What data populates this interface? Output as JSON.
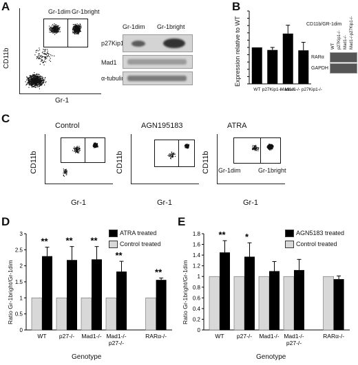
{
  "panels": {
    "A": "A",
    "B": "B",
    "C": "C",
    "D": "D",
    "E": "E"
  },
  "panelA": {
    "xlabel": "Gr-1",
    "ylabel": "CD11b",
    "gate_dim": "Gr-1dim",
    "gate_bright": "Gr-1bright",
    "blot_col1": "Gr-1dim",
    "blot_col2": "Gr-1bright",
    "blot_rows": [
      "p27Kip1",
      "Mad1",
      "α-tubulin"
    ]
  },
  "panelB": {
    "ylabel": "Expression relative to WT",
    "inset_title": "CD11b/GR-1dim",
    "inset_rows": [
      "RARα",
      "GAPDH"
    ],
    "inset_cols": [
      "WT",
      "p27Kip1-/-",
      "Mad1-/-",
      "Mad1-/-p27Kip1-/-"
    ]
  },
  "panelC": {
    "titles": [
      "Control",
      "AGN195183",
      "ATRA"
    ],
    "xlabel": "Gr-1",
    "ylabel": "CD11b",
    "gate_dim": "Gr-1dim",
    "gate_bright": "Gr-1bright"
  },
  "panelD": {
    "ylabel": "Ratio Gr-1bright/Gr-1dim",
    "xlabel": "Genotype",
    "legend": [
      "ATRA treated",
      "Control treated"
    ]
  },
  "panelE": {
    "ylabel": "Ratio Gr-1bright/Gr-1dim",
    "xlabel": "Genotype",
    "legend": [
      "AGN5183 treated",
      "Control treated"
    ]
  },
  "colors": {
    "treated": "#000000",
    "control": "#d8d8d8",
    "bar_B": "#000000"
  },
  "chart_data": [
    {
      "type": "bar",
      "panel": "B",
      "categories": [
        "WT",
        "p27Kip1-/-",
        "Mad1-/-",
        "Mad1-/- p27Kip1-/-"
      ],
      "values": [
        1.0,
        0.93,
        1.38,
        0.92
      ],
      "errors": [
        0.0,
        0.07,
        0.23,
        0.22
      ],
      "ylabel": "Expression relative to WT",
      "ylim": [
        0,
        2
      ],
      "yticks": [
        "0",
        "0.2",
        "0.4",
        "0.6",
        "0.8",
        "1",
        "1.2",
        "1.4",
        "1.6",
        "1.8",
        "2"
      ]
    },
    {
      "type": "bar",
      "panel": "D",
      "categories": [
        "WT",
        "p27-/-",
        "Mad1-/-",
        "Mad1-/- p27-/-",
        "RARα-/-"
      ],
      "series": [
        {
          "name": "Control treated",
          "values": [
            1,
            1,
            1,
            1,
            1
          ],
          "errors": [
            0,
            0,
            0,
            0,
            0
          ]
        },
        {
          "name": "ATRA treated",
          "values": [
            2.3,
            2.18,
            2.2,
            1.82,
            1.56
          ],
          "errors": [
            0.28,
            0.42,
            0.4,
            0.32,
            0.06
          ]
        }
      ],
      "annotations": [
        "**",
        "**",
        "**",
        "**",
        "**"
      ],
      "ylabel": "Ratio Gr-1bright/Gr-1dim",
      "xlabel": "Genotype",
      "ylim": [
        0,
        3
      ],
      "yticks": [
        "0",
        "0.5",
        "1",
        "1.5",
        "2",
        "2.5",
        "3"
      ]
    },
    {
      "type": "bar",
      "panel": "E",
      "categories": [
        "WT",
        "p27-/-",
        "Mad1-/-",
        "Mad1-/- p27-/-",
        "RARα-/-"
      ],
      "series": [
        {
          "name": "Control treated",
          "values": [
            1,
            1,
            1,
            1,
            1
          ],
          "errors": [
            0,
            0,
            0,
            0,
            0
          ]
        },
        {
          "name": "AGN5183 treated",
          "values": [
            1.45,
            1.37,
            1.1,
            1.12,
            0.95
          ],
          "errors": [
            0.22,
            0.26,
            0.18,
            0.2,
            0.06
          ]
        }
      ],
      "annotations": [
        "**",
        "*",
        "",
        "",
        ""
      ],
      "ylabel": "Ratio Gr-1bright/Gr-1dim",
      "xlabel": "Genotype",
      "ylim": [
        0,
        1.8
      ],
      "yticks": [
        "0",
        "0.2",
        "0.4",
        "0.6",
        "0.8",
        "1",
        "1.2",
        "1.4",
        "1.6",
        "1.8"
      ]
    }
  ]
}
